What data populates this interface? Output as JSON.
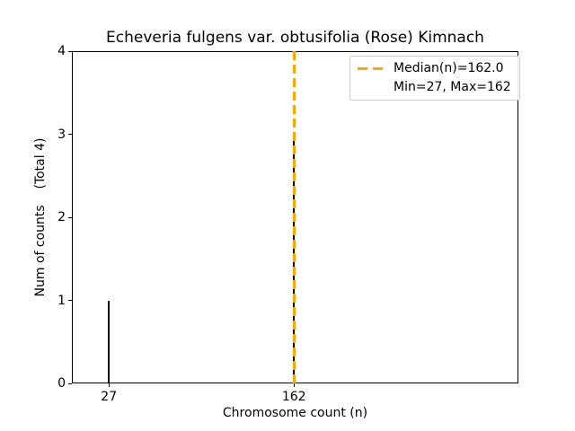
{
  "chart_data": {
    "type": "bar",
    "title": "Echeveria fulgens var. obtusifolia (Rose) Kimnach",
    "xlabel": "Chromosome count (n)",
    "ylabel": "Num of counts    (Total 4)",
    "x": [
      27,
      162
    ],
    "values": [
      1,
      3
    ],
    "total_counts": 4,
    "xlim": [
      0,
      325
    ],
    "ylim": [
      0,
      4
    ],
    "xticks": [
      27,
      162
    ],
    "yticks": [
      0,
      1,
      2,
      3,
      4
    ],
    "grid": false,
    "bar_color": "#000000",
    "background_color": "#ffffff",
    "median_line": {
      "value": 162.0,
      "color": "#ffa500",
      "style": "dashed"
    },
    "stats": {
      "min": 27,
      "max": 162,
      "median": 162.0
    },
    "legend": {
      "position": "upper right",
      "entries": [
        {
          "label": "Median(n)=162.0",
          "handle": "dashed-line",
          "color": "#ffa500"
        },
        {
          "label": "Min=27, Max=162",
          "handle": "none"
        }
      ]
    }
  }
}
